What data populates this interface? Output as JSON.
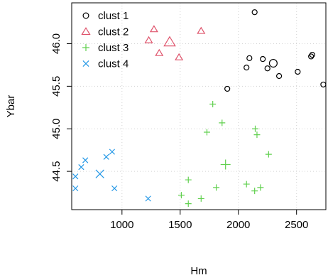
{
  "chart_data": {
    "type": "scatter",
    "title": "",
    "xlabel": "Hm",
    "ylabel": "Ybar",
    "xlim": [
      568,
      2752
    ],
    "ylim": [
      44.05,
      46.48
    ],
    "xticks": [
      1000,
      1500,
      2000,
      2500
    ],
    "xtick_labels": [
      "1000",
      "1500",
      "2000",
      "2500"
    ],
    "yticks": [
      44.5,
      45.0,
      45.5,
      46.0
    ],
    "ytick_labels": [
      "44.5",
      "45.0",
      "45.5",
      "46.0"
    ],
    "grid": true,
    "legend_position": "top-left",
    "series": [
      {
        "name": "clust 1",
        "marker": "circle",
        "color": "#000000",
        "points": [
          [
            1905,
            45.47
          ],
          [
            2140,
            46.37
          ],
          [
            2070,
            45.72
          ],
          [
            2095,
            45.83
          ],
          [
            2210,
            45.82
          ],
          [
            2250,
            45.71
          ],
          [
            2350,
            45.62
          ],
          [
            2510,
            45.67
          ],
          [
            2625,
            45.85
          ],
          [
            2635,
            45.87
          ],
          [
            2730,
            45.52
          ]
        ],
        "centroid": [
          2300,
          45.77
        ]
      },
      {
        "name": "clust 2",
        "marker": "triangle",
        "color": "#DF536B",
        "points": [
          [
            1230,
            46.04
          ],
          [
            1275,
            46.17
          ],
          [
            1320,
            45.89
          ],
          [
            1490,
            45.84
          ],
          [
            1680,
            46.15
          ]
        ],
        "centroid": [
          1410,
          46.02
        ]
      },
      {
        "name": "clust 3",
        "marker": "plus",
        "color": "#61D04F",
        "points": [
          [
            1780,
            45.29
          ],
          [
            1730,
            44.96
          ],
          [
            1860,
            45.07
          ],
          [
            2145,
            45.0
          ],
          [
            2160,
            44.93
          ],
          [
            2260,
            44.7
          ],
          [
            1570,
            44.4
          ],
          [
            1510,
            44.22
          ],
          [
            1570,
            44.12
          ],
          [
            1680,
            44.18
          ],
          [
            1810,
            44.31
          ],
          [
            2070,
            44.35
          ],
          [
            2140,
            44.27
          ],
          [
            2190,
            44.31
          ]
        ],
        "centroid": [
          1890,
          44.58
        ]
      },
      {
        "name": "clust 4",
        "marker": "cross",
        "color": "#2297E6",
        "points": [
          [
            600,
            44.44
          ],
          [
            600,
            44.3
          ],
          [
            650,
            44.55
          ],
          [
            685,
            44.63
          ],
          [
            865,
            44.67
          ],
          [
            915,
            44.73
          ],
          [
            935,
            44.3
          ],
          [
            1225,
            44.18
          ]
        ],
        "centroid": [
          810,
          44.47
        ]
      }
    ]
  }
}
